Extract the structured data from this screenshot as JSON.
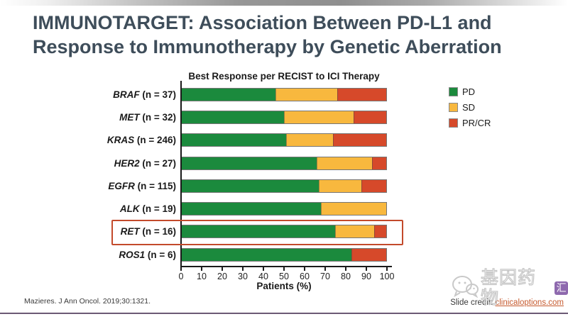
{
  "title_lines": [
    "IMMUNOTARGET: Association Between PD-L1 and",
    "Response to Immunotherapy by Genetic Aberration"
  ],
  "chart_data": {
    "type": "bar",
    "orientation": "horizontal",
    "stacked": true,
    "title": "Best Response per RECIST to ICI Therapy",
    "xlabel": "Patients (%)",
    "xlim": [
      0,
      100
    ],
    "xticks": [
      0,
      10,
      20,
      30,
      40,
      50,
      60,
      70,
      80,
      90,
      100
    ],
    "legend_position": "right",
    "grid": false,
    "series": [
      {
        "name": "PD",
        "color": "#1b8a3d",
        "values": [
          46,
          50,
          51,
          66,
          67,
          68,
          75,
          83
        ]
      },
      {
        "name": "SD",
        "color": "#f8b83e",
        "values": [
          30,
          34,
          23,
          27,
          21,
          32,
          19,
          0
        ]
      },
      {
        "name": "PR/CR",
        "color": "#d6492a",
        "values": [
          24,
          16,
          26,
          7,
          12,
          0,
          6,
          17
        ]
      }
    ],
    "rows": [
      {
        "gene": "BRAF",
        "n_label": "(n = 37)",
        "values": {
          "PD": 46,
          "SD": 30,
          "PR/CR": 24
        }
      },
      {
        "gene": "MET",
        "n_label": "(n = 32)",
        "values": {
          "PD": 50,
          "SD": 34,
          "PR/CR": 16
        }
      },
      {
        "gene": "KRAS",
        "n_label": "(n = 246)",
        "values": {
          "PD": 51,
          "SD": 23,
          "PR/CR": 26
        }
      },
      {
        "gene": "HER2",
        "n_label": "(n = 27)",
        "values": {
          "PD": 66,
          "SD": 27,
          "PR/CR": 7
        }
      },
      {
        "gene": "EGFR",
        "n_label": "(n = 115)",
        "values": {
          "PD": 67,
          "SD": 21,
          "PR/CR": 12
        }
      },
      {
        "gene": "ALK",
        "n_label": "(n = 19)",
        "values": {
          "PD": 68,
          "SD": 32,
          "PR/CR": 0
        }
      },
      {
        "gene": "RET",
        "n_label": "(n = 16)",
        "values": {
          "PD": 75,
          "SD": 19,
          "PR/CR": 6
        }
      },
      {
        "gene": "ROS1",
        "n_label": "(n = 6)",
        "values": {
          "PD": 83,
          "SD": 0,
          "PR/CR": 17
        }
      }
    ],
    "highlighted_row": "RET"
  },
  "citation": "Mazieres. J Ann Oncol. 2019;30:1321.",
  "slide_credit": {
    "prefix": "Slide credit: ",
    "link": "clinicaloptions.com"
  },
  "watermark": {
    "icon": "wechat-icon",
    "text": "基因药物",
    "badge": "汇"
  },
  "colors": {
    "pd_green": "#1b8a3d",
    "sd_yellow": "#f8b83e",
    "prcr_red": "#d6492a",
    "highlight_box": "#c34a2b",
    "title_slate": "#3e4d5a",
    "link_orange": "#c65a2e",
    "watermark_badge_purple": "#7b4fa0"
  }
}
